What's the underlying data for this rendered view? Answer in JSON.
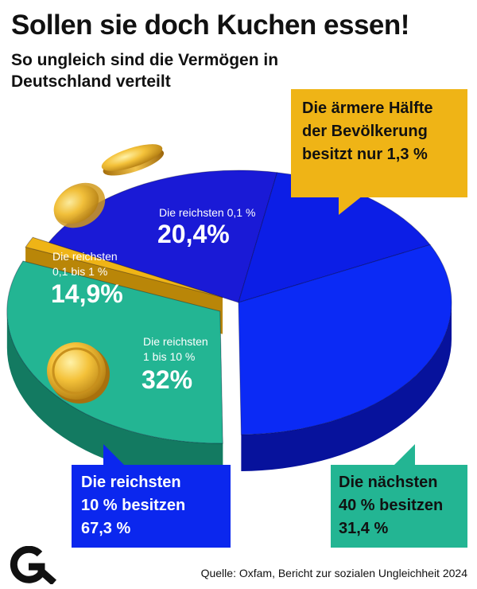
{
  "header": {
    "title": "Sollen sie doch Kuchen essen!",
    "subtitle": "So ungleich sind die Vermögen in Deutschland verteilt"
  },
  "chart_data": {
    "type": "pie",
    "title": "Sollen sie doch Kuchen essen!",
    "subtitle": "So ungleich sind die Vermögen in Deutschland verteilt",
    "unit": "%",
    "slices": [
      {
        "label": "Die reichsten 0,1 %",
        "value": 20.4,
        "value_label": "20,4%",
        "color": "#1a1ad6"
      },
      {
        "label": "Die reichsten 0,1 bis 1 %",
        "value": 14.9,
        "value_label": "14,9%",
        "color": "#0c1ee6"
      },
      {
        "label": "Die reichsten 1 bis 10 %",
        "value": 32,
        "value_label": "32%",
        "color": "#0b2af5"
      },
      {
        "label": "Die nächsten 40 %",
        "value": 31.4,
        "value_label": "",
        "color": "#23b593"
      },
      {
        "label": "Die ärmere Hälfte der Bevölkerung",
        "value": 1.3,
        "value_label": "",
        "color": "#efb416"
      }
    ],
    "labels": {
      "slice1_line": "Die reichsten 0,1 %",
      "slice2_line1": "Die reichsten",
      "slice2_line2": "0,1 bis 1 %",
      "slice3_line1": "Die reichsten",
      "slice3_line2": "1 bis 10 %"
    },
    "annotations": {
      "poor_half": {
        "line1": "Die ärmere Hälfte",
        "line2": "der Bevölkerung",
        "line3": "besitzt nur 1,3 %"
      },
      "top10": {
        "line1": "Die reichsten",
        "line2": "10 % besitzen",
        "line3": "67,3 %"
      },
      "next40": {
        "line1": "Die nächsten",
        "line2": "40 % besitzen",
        "line3": "31,4 %"
      }
    }
  },
  "footer": {
    "source": "Quelle: Oxfam, Bericht zur sozialen Ungleichheit 2024",
    "logo_icon": "g-logo-icon"
  }
}
